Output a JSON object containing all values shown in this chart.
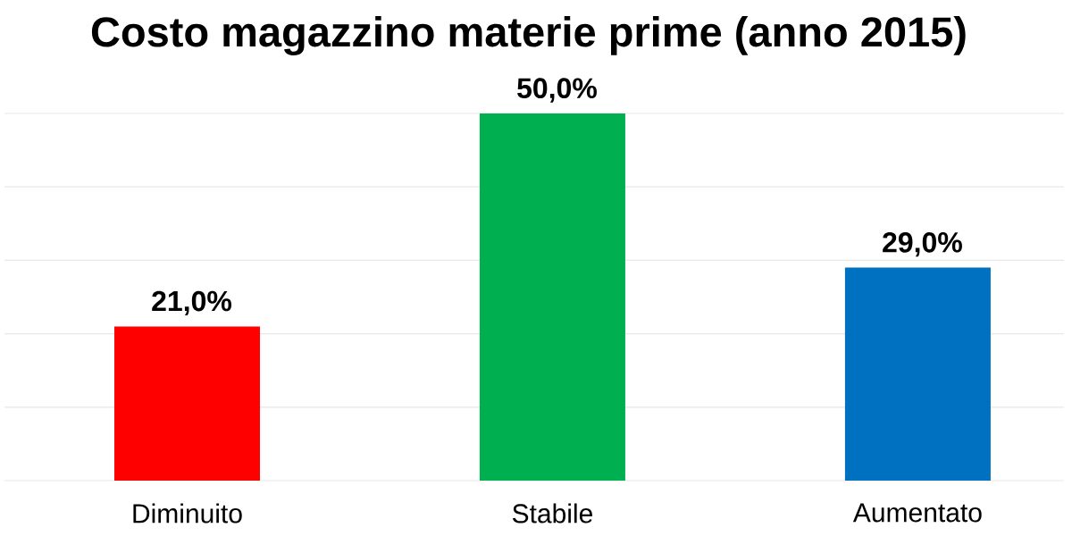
{
  "chart_data": {
    "type": "bar",
    "title": "Costo magazzino materie prime (anno 2015)",
    "categories": [
      "Diminuito",
      "Stabile",
      "Aumentato"
    ],
    "values": [
      21,
      50,
      29
    ],
    "colors": [
      "#ff0000",
      "#00b050",
      "#0070c0"
    ],
    "value_labels": [
      "21,0%",
      "50,0%",
      "29,0%"
    ],
    "ylim": [
      0,
      50
    ],
    "yticks": [
      {
        "value": 0,
        "label": null
      },
      {
        "value": 10,
        "label": null
      },
      {
        "value": 20,
        "label": null
      },
      {
        "value": 30,
        "label": null
      },
      {
        "value": 40,
        "label": null
      },
      {
        "value": 50,
        "label": null
      }
    ],
    "grid": "y",
    "tick_labels": "x"
  }
}
